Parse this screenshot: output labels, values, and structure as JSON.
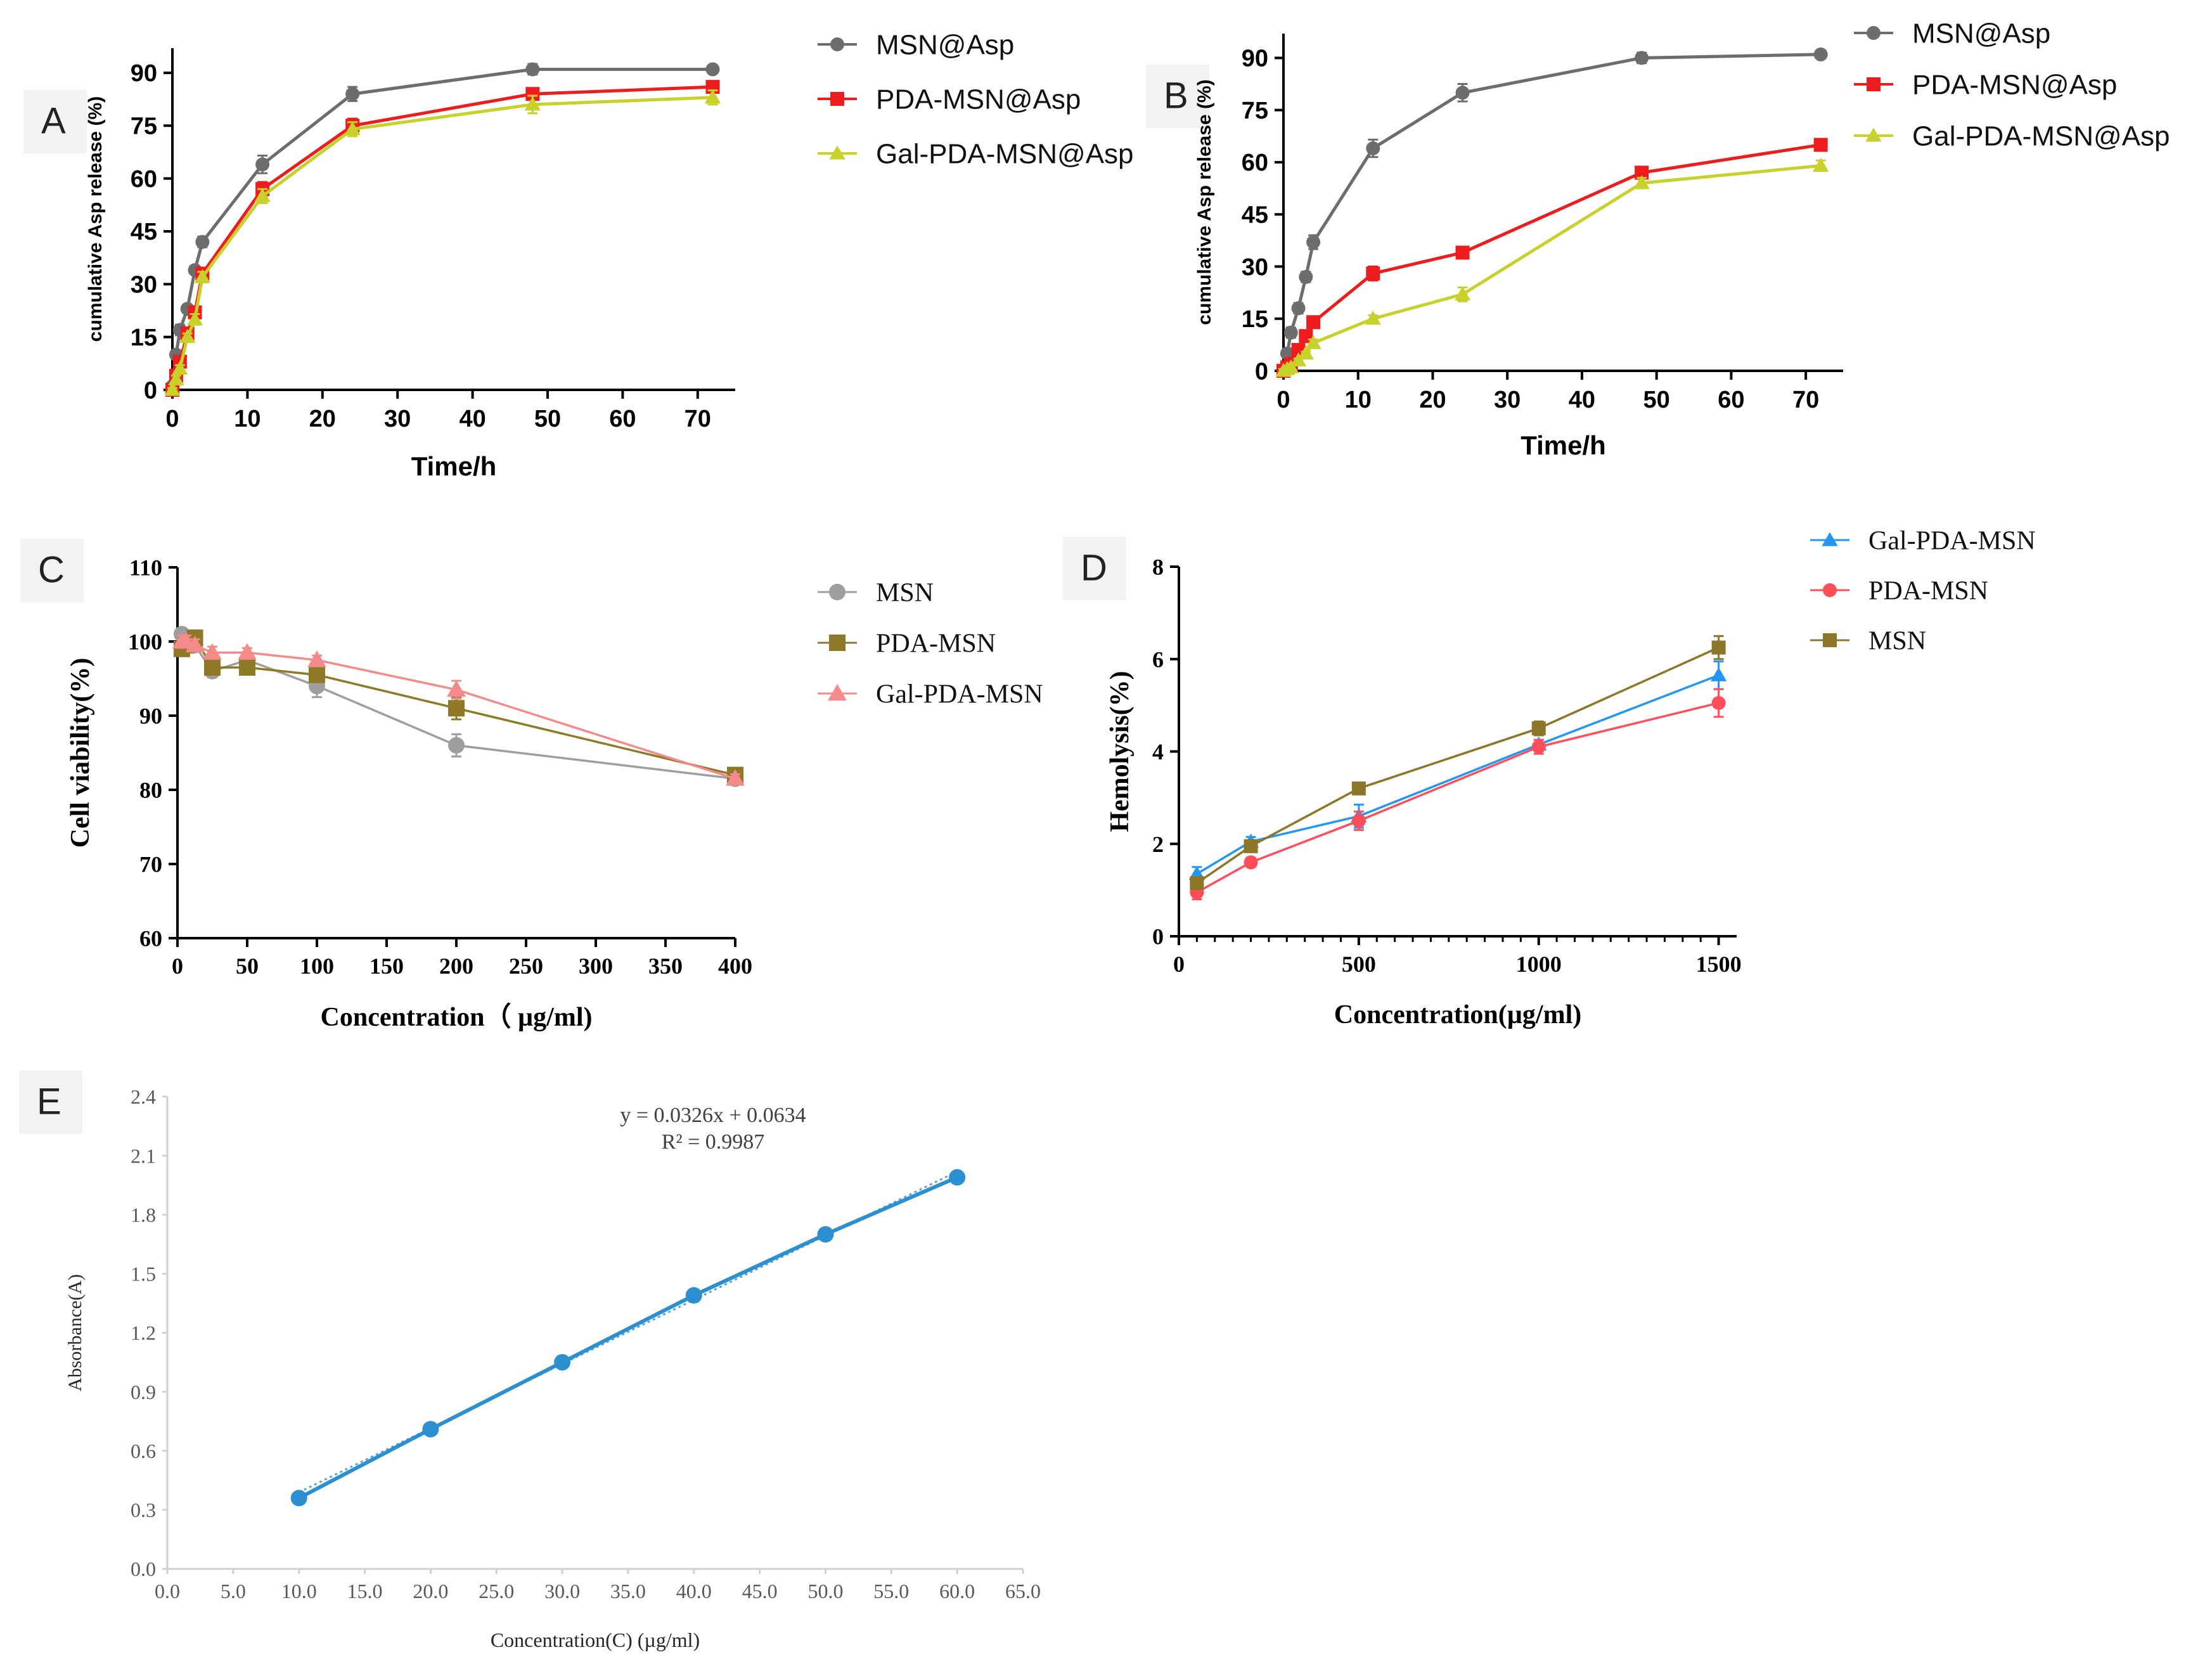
{
  "colors": {
    "msn_grey": "#6d6d6d",
    "red": "#ee1c1c",
    "yellow_green": "#c7d12a",
    "light_grey": "#9e9e9e",
    "olive": "#8e7a26",
    "salmon": "#f58a8a",
    "blue": "#2196f3",
    "pink_red": "#ff4d5a",
    "brown": "#8c7628",
    "steel_blue": "#2b8fd0"
  },
  "chart_data": [
    {
      "id": "A",
      "panel_label": "A",
      "type": "line",
      "title": "",
      "xlabel": "Time/h",
      "ylabel": "cumulative Asp release (%)",
      "xlim": [
        0,
        75
      ],
      "ylim": [
        0,
        97
      ],
      "xticks": [
        "0",
        "10",
        "20",
        "30",
        "40",
        "50",
        "60",
        "70"
      ],
      "xtick_values": [
        0,
        10,
        20,
        30,
        40,
        50,
        60,
        70
      ],
      "yticks": [
        "0",
        "15",
        "30",
        "45",
        "60",
        "75",
        "90"
      ],
      "ytick_values": [
        0,
        15,
        30,
        45,
        60,
        75,
        90
      ],
      "legend": "top-right",
      "series": [
        {
          "name": "MSN@Asp",
          "marker": "circle",
          "color": "#6d6d6d",
          "x": [
            0,
            0.5,
            1,
            2,
            3,
            4,
            12,
            24,
            48,
            72
          ],
          "y": [
            1,
            10,
            17,
            23,
            34,
            42,
            64,
            84,
            91,
            91
          ],
          "err": [
            0.5,
            1,
            1.5,
            1,
            1,
            1.5,
            2.5,
            2,
            1.5,
            1
          ]
        },
        {
          "name": "PDA-MSN@Asp",
          "marker": "square",
          "color": "#ee1c1c",
          "x": [
            0,
            0.5,
            1,
            2,
            3,
            4,
            12,
            24,
            48,
            72
          ],
          "y": [
            0,
            4,
            8,
            16,
            22,
            33,
            57,
            75,
            84,
            86
          ],
          "err": [
            0.5,
            1,
            1,
            1,
            1.5,
            1.5,
            2,
            2,
            1.5,
            1.5
          ]
        },
        {
          "name": "Gal-PDA-MSN@Asp",
          "marker": "triangle",
          "color": "#c7d12a",
          "x": [
            0,
            0.5,
            1,
            2,
            3,
            4,
            12,
            24,
            48,
            72
          ],
          "y": [
            0,
            3,
            6,
            15,
            20,
            32,
            55,
            74,
            81,
            83
          ],
          "err": [
            0.5,
            1,
            1,
            1,
            1.5,
            1.5,
            2,
            2,
            2.5,
            2
          ]
        }
      ]
    },
    {
      "id": "B",
      "panel_label": "B",
      "type": "line",
      "title": "",
      "xlabel": "Time/h",
      "ylabel": "cumulative Asp release (%)",
      "xlim": [
        0,
        75
      ],
      "ylim": [
        0,
        97
      ],
      "xticks": [
        "0",
        "10",
        "20",
        "30",
        "40",
        "50",
        "60",
        "70"
      ],
      "xtick_values": [
        0,
        10,
        20,
        30,
        40,
        50,
        60,
        70
      ],
      "yticks": [
        "0",
        "15",
        "30",
        "45",
        "60",
        "75",
        "90"
      ],
      "ytick_values": [
        0,
        15,
        30,
        45,
        60,
        75,
        90
      ],
      "legend": "top-right",
      "series": [
        {
          "name": "MSN@Asp",
          "marker": "circle",
          "color": "#6d6d6d",
          "x": [
            0,
            0.5,
            1,
            2,
            3,
            4,
            12,
            24,
            48,
            72
          ],
          "y": [
            0,
            5,
            11,
            18,
            27,
            37,
            64,
            80,
            90,
            91
          ],
          "err": [
            0.5,
            1,
            1.5,
            1.5,
            1.5,
            2,
            2.5,
            2.5,
            1.5,
            1
          ]
        },
        {
          "name": "PDA-MSN@Asp",
          "marker": "square",
          "color": "#ee1c1c",
          "x": [
            0,
            0.5,
            1,
            2,
            3,
            4,
            12,
            24,
            48,
            72
          ],
          "y": [
            0,
            1,
            2,
            6,
            10,
            14,
            28,
            34,
            57,
            65
          ],
          "err": [
            0.5,
            0.5,
            0.5,
            1,
            1,
            1,
            2,
            1,
            1.5,
            1.5
          ]
        },
        {
          "name": "Gal-PDA-MSN@Asp",
          "marker": "triangle",
          "color": "#c7d12a",
          "x": [
            0,
            0.5,
            1,
            2,
            3,
            4,
            12,
            24,
            48,
            72
          ],
          "y": [
            0,
            0.5,
            1,
            3,
            5,
            8,
            15,
            22,
            54,
            59
          ],
          "err": [
            0.5,
            0.5,
            0.5,
            0.5,
            0.5,
            1,
            1,
            2,
            1.5,
            1.5
          ]
        }
      ]
    },
    {
      "id": "C",
      "panel_label": "C",
      "type": "line",
      "title": "",
      "xlabel": "Concentration（ µg/ml)",
      "ylabel": "Cell viability(%)",
      "xlim": [
        0,
        400
      ],
      "ylim": [
        60,
        110
      ],
      "xticks": [
        "0",
        "50",
        "100",
        "150",
        "200",
        "250",
        "300",
        "350",
        "400"
      ],
      "xtick_values": [
        0,
        50,
        100,
        150,
        200,
        250,
        300,
        350,
        400
      ],
      "yticks": [
        "60",
        "70",
        "80",
        "90",
        "100",
        "110"
      ],
      "ytick_values": [
        60,
        70,
        80,
        90,
        100,
        110
      ],
      "legend": "top-right",
      "series": [
        {
          "name": "MSN",
          "marker": "circle",
          "color": "#9e9e9e",
          "x": [
            3.125,
            6.25,
            12.5,
            25,
            50,
            100,
            200,
            400
          ],
          "y": [
            101,
            100.5,
            99.5,
            96,
            97.5,
            94,
            86,
            81.5
          ],
          "err": [
            0.8,
            0.8,
            0.8,
            0.8,
            0.8,
            1.5,
            1.5,
            0.8
          ]
        },
        {
          "name": "PDA-MSN",
          "marker": "square",
          "color": "#8e7a26",
          "x": [
            3.125,
            6.25,
            12.5,
            25,
            50,
            100,
            200,
            400
          ],
          "y": [
            99,
            99.5,
            100.5,
            96.5,
            96.5,
            95.5,
            91,
            82
          ],
          "err": [
            0.8,
            0.8,
            1,
            0.8,
            0.8,
            0.8,
            1.5,
            0.6
          ]
        },
        {
          "name": "Gal-PDA-MSN",
          "marker": "triangle",
          "color": "#f58a8a",
          "x": [
            3.125,
            6.25,
            12.5,
            25,
            50,
            100,
            200,
            400
          ],
          "y": [
            100,
            100,
            99.5,
            98.5,
            98.5,
            97.5,
            93.5,
            81.5
          ],
          "err": [
            0.8,
            0.8,
            0.8,
            0.8,
            0.6,
            0.6,
            1.2,
            0.6
          ]
        }
      ]
    },
    {
      "id": "D",
      "panel_label": "D",
      "type": "line",
      "title": "",
      "xlabel": "Concentration(µg/ml)",
      "ylabel": "Hemolysis(%)",
      "xlim": [
        0,
        1550
      ],
      "ylim": [
        0,
        8
      ],
      "xticks": [
        "0",
        "500",
        "1000",
        "1500"
      ],
      "xtick_values": [
        0,
        500,
        1000,
        1500
      ],
      "yticks": [
        "0",
        "2",
        "4",
        "6",
        "8"
      ],
      "ytick_values": [
        0,
        2,
        4,
        6,
        8
      ],
      "legend": "top-right",
      "series": [
        {
          "name": "Gal-PDA-MSN",
          "marker": "triangle",
          "color": "#2196f3",
          "x": [
            50,
            200,
            500,
            1000,
            1500
          ],
          "y": [
            1.35,
            2.05,
            2.6,
            4.15,
            5.65
          ],
          "err": [
            0.15,
            0.1,
            0.25,
            0.1,
            0.3
          ]
        },
        {
          "name": "PDA-MSN",
          "marker": "circle",
          "color": "#ff4d5a",
          "x": [
            50,
            200,
            500,
            1000,
            1500
          ],
          "y": [
            0.95,
            1.6,
            2.5,
            4.1,
            5.05
          ],
          "err": [
            0.15,
            0.1,
            0.2,
            0.15,
            0.3
          ]
        },
        {
          "name": "MSN",
          "marker": "square",
          "color": "#8c7628",
          "x": [
            50,
            200,
            500,
            1000,
            1500
          ],
          "y": [
            1.15,
            1.95,
            3.2,
            4.5,
            6.25
          ],
          "err": [
            0.1,
            0.05,
            0.1,
            0.15,
            0.25
          ]
        }
      ]
    },
    {
      "id": "E",
      "panel_label": "E",
      "type": "scatter",
      "title": "",
      "xlabel": "Concentration(C) (µg/ml)",
      "ylabel": "Absorbance(A)",
      "xlim": [
        0,
        65
      ],
      "ylim": [
        0,
        2.4
      ],
      "xticks": [
        "0.0",
        "5.0",
        "10.0",
        "15.0",
        "20.0",
        "25.0",
        "30.0",
        "35.0",
        "40.0",
        "45.0",
        "50.0",
        "55.0",
        "60.0",
        "65.0"
      ],
      "xtick_values": [
        0,
        5,
        10,
        15,
        20,
        25,
        30,
        35,
        40,
        45,
        50,
        55,
        60,
        65
      ],
      "yticks": [
        "0.0",
        "0.3",
        "0.6",
        "0.9",
        "1.2",
        "1.5",
        "1.8",
        "2.1",
        "2.4"
      ],
      "ytick_values": [
        0,
        0.3,
        0.6,
        0.9,
        1.2,
        1.5,
        1.8,
        2.1,
        2.4
      ],
      "grid": false,
      "legend": "none",
      "series": [
        {
          "name": "Absorbance",
          "marker": "circle",
          "color": "#2b8fd0",
          "x": [
            10,
            20,
            30,
            40,
            50,
            60
          ],
          "y": [
            0.36,
            0.71,
            1.05,
            1.39,
            1.7,
            1.99
          ]
        }
      ],
      "trendline": {
        "slope": 0.0326,
        "intercept": 0.0634
      },
      "equation": "y = 0.0326x + 0.0634",
      "r_squared": "R² = 0.9987"
    }
  ]
}
